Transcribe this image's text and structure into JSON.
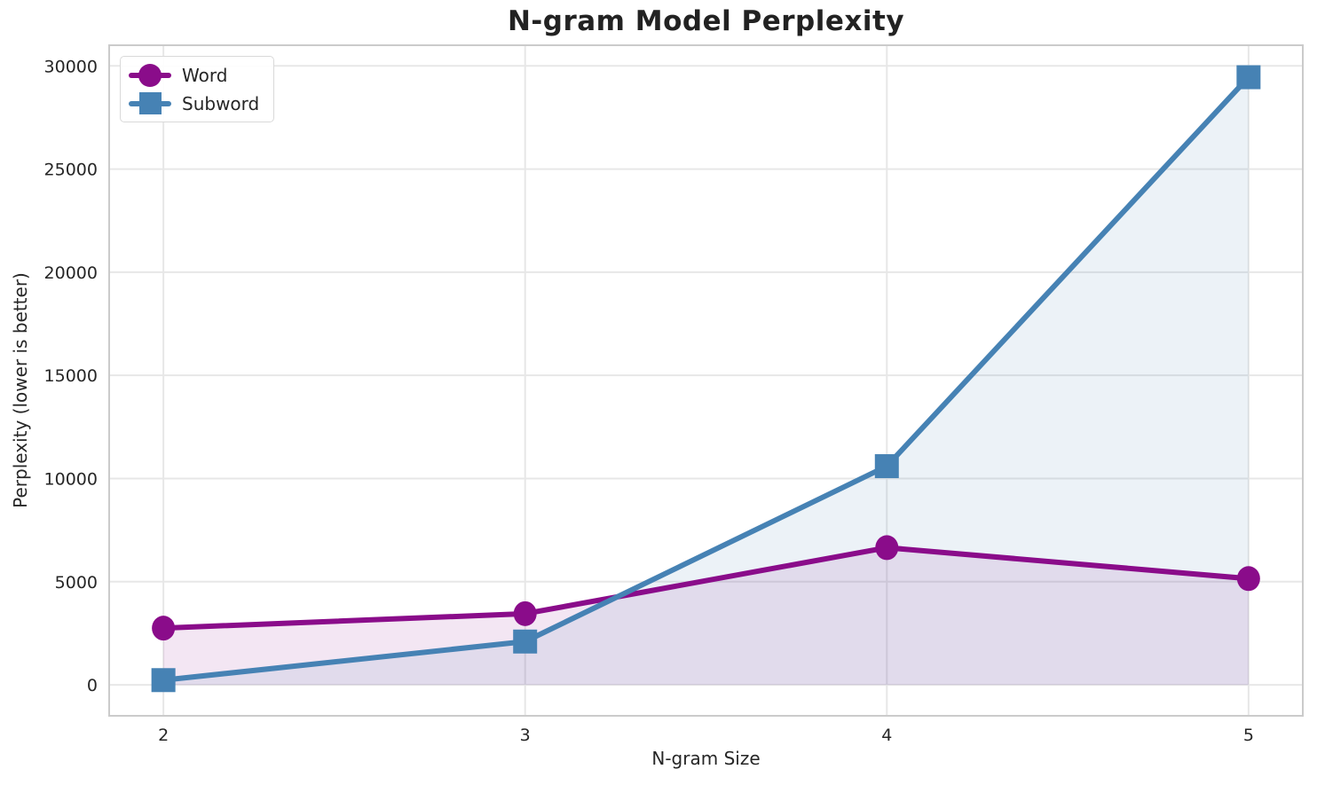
{
  "chart_data": {
    "type": "line",
    "title": "N-gram Model Perplexity",
    "xlabel": "N-gram Size",
    "ylabel": "Perplexity (lower is better)",
    "x": [
      2,
      3,
      4,
      5
    ],
    "series": [
      {
        "name": "Word",
        "values": [
          2750,
          3450,
          6650,
          5150
        ],
        "color": "#8A0C8A",
        "marker": "circle"
      },
      {
        "name": "Subword",
        "values": [
          230,
          2100,
          10600,
          29450
        ],
        "color": "#4682B4",
        "marker": "square"
      }
    ],
    "x_ticks": [
      2,
      3,
      4,
      5
    ],
    "y_ticks": [
      0,
      5000,
      10000,
      15000,
      20000,
      25000,
      30000
    ],
    "xlim": [
      1.85,
      5.15
    ],
    "ylim": [
      -1500,
      31000
    ],
    "grid": true,
    "area_fill": true,
    "fill_baseline": 0,
    "fill_alpha": 0.1,
    "legend_position": "upper left",
    "colors": {
      "grid": "#E7E7E7",
      "spine": "#CBCBCB",
      "text": "#262626",
      "title": "#222222",
      "background": "#FFFFFF"
    }
  }
}
